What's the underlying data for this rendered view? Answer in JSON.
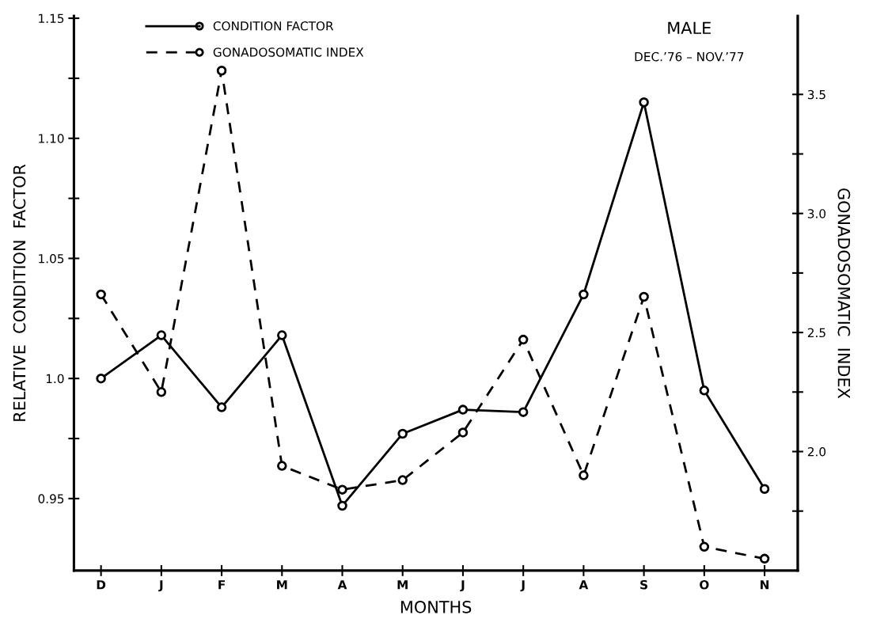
{
  "chart_data": {
    "type": "line",
    "title": "MALE",
    "subtitle": "DEC.’76 – NOV.’77",
    "xlabel": "MONTHS",
    "ylabel": "RELATIVE  CONDITION  FACTOR",
    "y2label": "GONADOSOMATIC  INDEX",
    "categories": [
      "D",
      "J",
      "F",
      "M",
      "A",
      "M",
      "J",
      "J",
      "A",
      "S",
      "O",
      "N"
    ],
    "series": [
      {
        "name": "CONDITION FACTOR",
        "color": "#000000",
        "line_style": "solid",
        "values": [
          1.0,
          1.018,
          0.988,
          1.018,
          0.947,
          0.977,
          0.987,
          0.986,
          1.035,
          1.115,
          0.995,
          0.954
        ]
      },
      {
        "name": "GONADOSOMATIC INDEX",
        "color": "#000000",
        "line_style": "dashed",
        "axis": "y2",
        "values": [
          2.66,
          2.25,
          3.6,
          1.94,
          1.84,
          1.88,
          2.08,
          2.47,
          1.9,
          2.65,
          1.6,
          1.55
        ]
      }
    ],
    "marker": "circle",
    "ylim": [
      0.92,
      1.151
    ],
    "yticks": [
      0.95,
      {
        "value": 0.975,
        "label": null
      },
      {
        "value": 1.0,
        "label": "1.0"
      },
      {
        "value": 1.025,
        "label": null
      },
      1.05,
      {
        "value": 1.075,
        "label": null
      },
      {
        "value": 1.1,
        "label": "1.10"
      },
      {
        "value": 1.125,
        "label": null
      },
      1.15
    ],
    "y2lim": [
      1.5,
      3.83
    ],
    "y2ticks": [
      {
        "value": 1.75,
        "label": null
      },
      {
        "value": 2.0,
        "label": "2.0"
      },
      {
        "value": 2.25,
        "label": null
      },
      2.5,
      {
        "value": 2.75,
        "label": null
      },
      {
        "value": 3.0,
        "label": "3.0"
      },
      {
        "value": 3.25,
        "label": null
      },
      3.5
    ],
    "grid": false,
    "legend": "top left"
  }
}
